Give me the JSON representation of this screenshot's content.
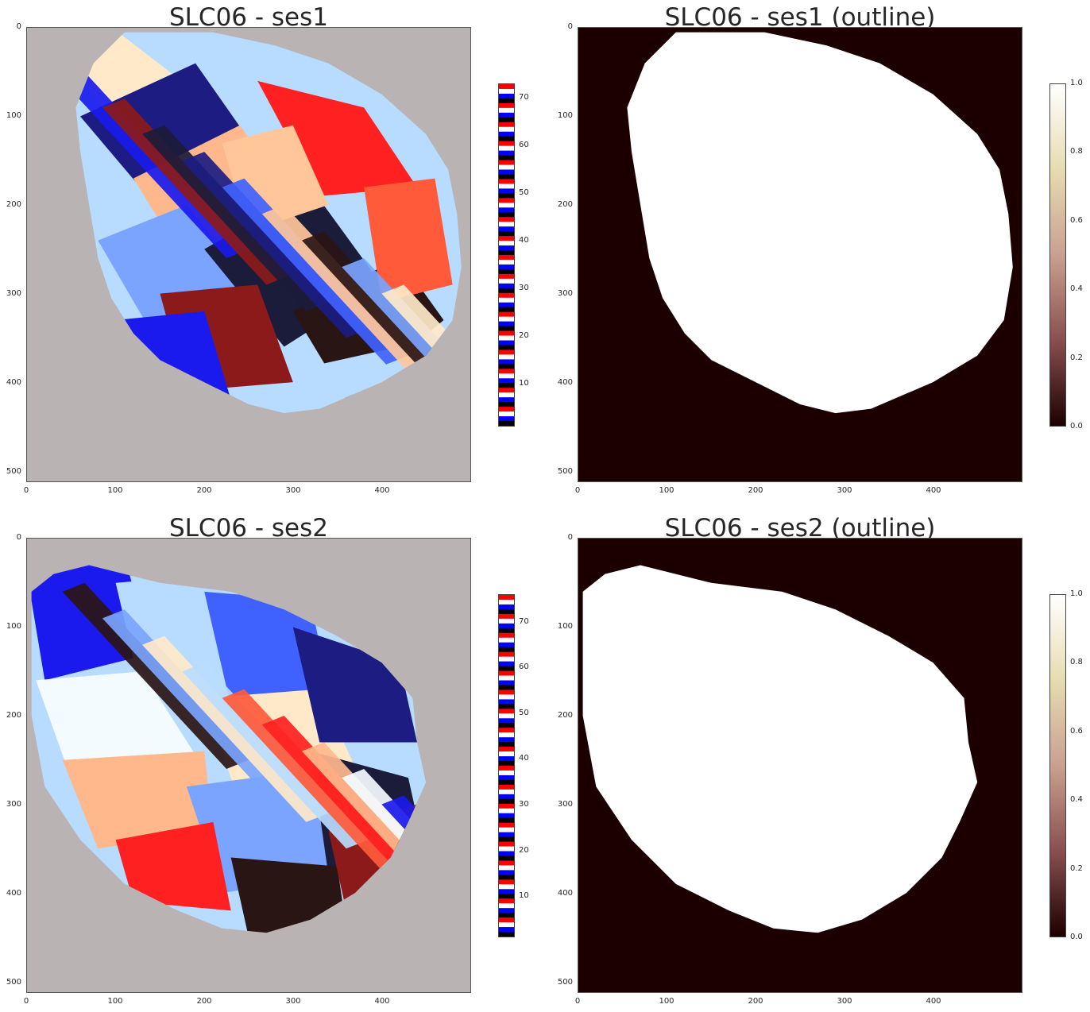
{
  "chart_data": [
    {
      "type": "heatmap",
      "title": "SLC06 - ses1",
      "kind": "label-map",
      "colormap": "flag",
      "background": "#bab3b3",
      "x_ticks": [
        "0",
        "100",
        "200",
        "300",
        "400"
      ],
      "y_ticks": [
        "0",
        "100",
        "200",
        "300",
        "400",
        "500"
      ],
      "xlim": [
        0,
        500
      ],
      "ylim": [
        512,
        0
      ],
      "colorbar_ticks": [
        "10",
        "20",
        "30",
        "40",
        "50",
        "60",
        "70"
      ],
      "colorbar_range": [
        1,
        73
      ]
    },
    {
      "type": "heatmap",
      "title": "SLC06 - ses1 (outline)",
      "kind": "binary-mask",
      "colormap": "pink",
      "x_ticks": [
        "0",
        "100",
        "200",
        "300",
        "400"
      ],
      "y_ticks": [
        "0",
        "100",
        "200",
        "300",
        "400",
        "500"
      ],
      "xlim": [
        0,
        500
      ],
      "ylim": [
        512,
        0
      ],
      "colorbar_ticks": [
        "0.0",
        "0.2",
        "0.4",
        "0.6",
        "0.8",
        "1.0"
      ],
      "colorbar_range": [
        0,
        1
      ]
    },
    {
      "type": "heatmap",
      "title": "SLC06 - ses2",
      "kind": "label-map",
      "colormap": "flag",
      "background": "#bab3b3",
      "x_ticks": [
        "0",
        "100",
        "200",
        "300",
        "400"
      ],
      "y_ticks": [
        "0",
        "100",
        "200",
        "300",
        "400",
        "500"
      ],
      "xlim": [
        0,
        500
      ],
      "ylim": [
        512,
        0
      ],
      "colorbar_ticks": [
        "10",
        "20",
        "30",
        "40",
        "50",
        "60",
        "70"
      ],
      "colorbar_range": [
        1,
        76
      ]
    },
    {
      "type": "heatmap",
      "title": "SLC06 - ses2 (outline)",
      "kind": "binary-mask",
      "colormap": "pink",
      "x_ticks": [
        "0",
        "100",
        "200",
        "300",
        "400"
      ],
      "y_ticks": [
        "0",
        "100",
        "200",
        "300",
        "400",
        "500"
      ],
      "xlim": [
        0,
        500
      ],
      "ylim": [
        512,
        0
      ],
      "colorbar_ticks": [
        "0.0",
        "0.2",
        "0.4",
        "0.6",
        "0.8",
        "1.0"
      ],
      "colorbar_range": [
        0,
        1
      ]
    }
  ],
  "colors": {
    "mask_background": "#1c0000",
    "mask_foreground": "#ffffff",
    "label_palette": [
      "#ffe9c9",
      "#ff2121",
      "#1a1aee",
      "#1c1c82",
      "#2a1515",
      "#b8dcff",
      "#ffb88c",
      "#8c1a1a",
      "#3f62ff",
      "#7aa4ff",
      "#ff5a3a",
      "#f4fbff",
      "#1b1b3a",
      "#ffc69a"
    ]
  }
}
